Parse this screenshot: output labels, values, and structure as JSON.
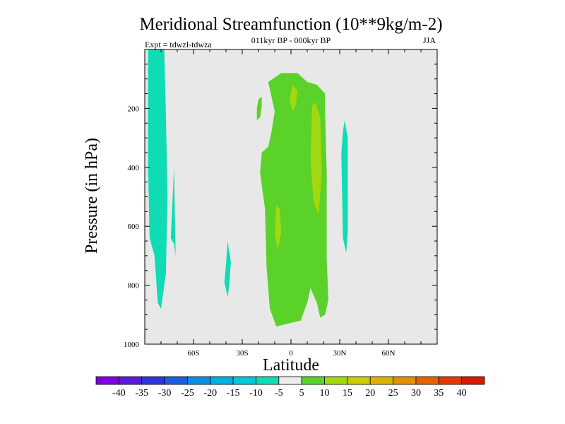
{
  "chart_data": {
    "type": "contour",
    "title": "Meridional Streamfunction (10**9kg/m-2)",
    "subtitle": "011kyr BP - 000kyr BP",
    "left_label": "Expt = tdwzl-tdwza",
    "right_label": "JJA",
    "xlabel": "Latitude",
    "ylabel": "Pressure (in hPa)",
    "x_range": [
      -90,
      90
    ],
    "y_range": [
      0,
      1000
    ],
    "x_ticks": [
      {
        "value": -60,
        "label": "60S"
      },
      {
        "value": -30,
        "label": "30S"
      },
      {
        "value": 0,
        "label": "0"
      },
      {
        "value": 30,
        "label": "30N"
      },
      {
        "value": 60,
        "label": "60N"
      }
    ],
    "y_ticks": [
      {
        "value": 200,
        "label": "200"
      },
      {
        "value": 400,
        "label": "400"
      },
      {
        "value": 600,
        "label": "600"
      },
      {
        "value": 800,
        "label": "800"
      },
      {
        "value": 1000,
        "label": "1000"
      }
    ],
    "colorbar": {
      "levels": [
        -40,
        -35,
        -30,
        -25,
        -20,
        -15,
        -10,
        -5,
        5,
        10,
        15,
        20,
        25,
        30,
        35,
        40
      ],
      "labels": [
        "-40",
        "-35",
        "-30",
        "-25",
        "-20",
        "-15",
        "-10",
        "-5",
        "5",
        "10",
        "15",
        "20",
        "25",
        "30",
        "35",
        "40"
      ],
      "colors": [
        "#8000e0",
        "#5a1cd8",
        "#2c36d8",
        "#1d5ee0",
        "#0f8ee0",
        "#00aee0",
        "#00c8d8",
        "#10dcb4",
        "#ececec",
        "#5ad22a",
        "#a2d810",
        "#cccc00",
        "#dcb400",
        "#e29000",
        "#e26400",
        "#e03a00",
        "#d81a00"
      ]
    },
    "regions": [
      {
        "name": "cyan-southern-band",
        "fill": "#10dcb4",
        "points": [
          [
            -88,
            0
          ],
          [
            -78,
            0
          ],
          [
            -77,
            220
          ],
          [
            -76,
            500
          ],
          [
            -77,
            760
          ],
          [
            -80,
            880
          ],
          [
            -82,
            860
          ],
          [
            -84,
            700
          ],
          [
            -87,
            640
          ],
          [
            -88,
            400
          ]
        ]
      },
      {
        "name": "cyan-blob-62s-a",
        "fill": "#10dcb4",
        "points": [
          [
            -72,
            400
          ],
          [
            -71,
            700
          ],
          [
            -72,
            660
          ],
          [
            -74,
            640
          ]
        ]
      },
      {
        "name": "cyan-blob-40s",
        "fill": "#10dcb4",
        "points": [
          [
            -39,
            650
          ],
          [
            -37,
            720
          ],
          [
            -38,
            800
          ],
          [
            -39,
            840
          ],
          [
            -41,
            790
          ],
          [
            -40,
            730
          ]
        ]
      },
      {
        "name": "cyan-blob-32n",
        "fill": "#10dcb4",
        "points": [
          [
            33,
            240
          ],
          [
            35,
            300
          ],
          [
            35,
            620
          ],
          [
            34,
            690
          ],
          [
            32,
            640
          ],
          [
            31,
            350
          ],
          [
            32,
            280
          ]
        ]
      },
      {
        "name": "green-upper-left",
        "fill": "#5ad22a",
        "points": [
          [
            -20,
            170
          ],
          [
            -18,
            160
          ],
          [
            -18,
            195
          ],
          [
            -19,
            230
          ],
          [
            -21,
            240
          ],
          [
            -21,
            200
          ]
        ]
      },
      {
        "name": "green-main-region",
        "fill": "#5ad22a",
        "points": [
          [
            -14,
            110
          ],
          [
            -6,
            80
          ],
          [
            4,
            80
          ],
          [
            10,
            110
          ],
          [
            16,
            120
          ],
          [
            21,
            150
          ],
          [
            21,
            210
          ],
          [
            22,
            420
          ],
          [
            22,
            710
          ],
          [
            23,
            850
          ],
          [
            21,
            900
          ],
          [
            18,
            910
          ],
          [
            16,
            860
          ],
          [
            12,
            810
          ],
          [
            10,
            860
          ],
          [
            6,
            920
          ],
          [
            -9,
            940
          ],
          [
            -13,
            880
          ],
          [
            -15,
            740
          ],
          [
            -16,
            540
          ],
          [
            -19,
            420
          ],
          [
            -18,
            350
          ],
          [
            -14,
            330
          ],
          [
            -12,
            280
          ],
          [
            -10,
            210
          ]
        ]
      },
      {
        "name": "yellowgreen-cell-a",
        "fill": "#a2d810",
        "points": [
          [
            1,
            120
          ],
          [
            4,
            140
          ],
          [
            3,
            190
          ],
          [
            1,
            210
          ],
          [
            -1,
            170
          ]
        ]
      },
      {
        "name": "yellowgreen-cell-b",
        "fill": "#a2d810",
        "points": [
          [
            13,
            190
          ],
          [
            15,
            180
          ],
          [
            18,
            230
          ],
          [
            19,
            420
          ],
          [
            17,
            560
          ],
          [
            14,
            520
          ],
          [
            12,
            380
          ]
        ]
      },
      {
        "name": "yellowgreen-cell-c",
        "fill": "#a2d810",
        "points": [
          [
            -9,
            530
          ],
          [
            -7,
            540
          ],
          [
            -6,
            620
          ],
          [
            -8,
            680
          ],
          [
            -10,
            630
          ]
        ]
      }
    ]
  }
}
